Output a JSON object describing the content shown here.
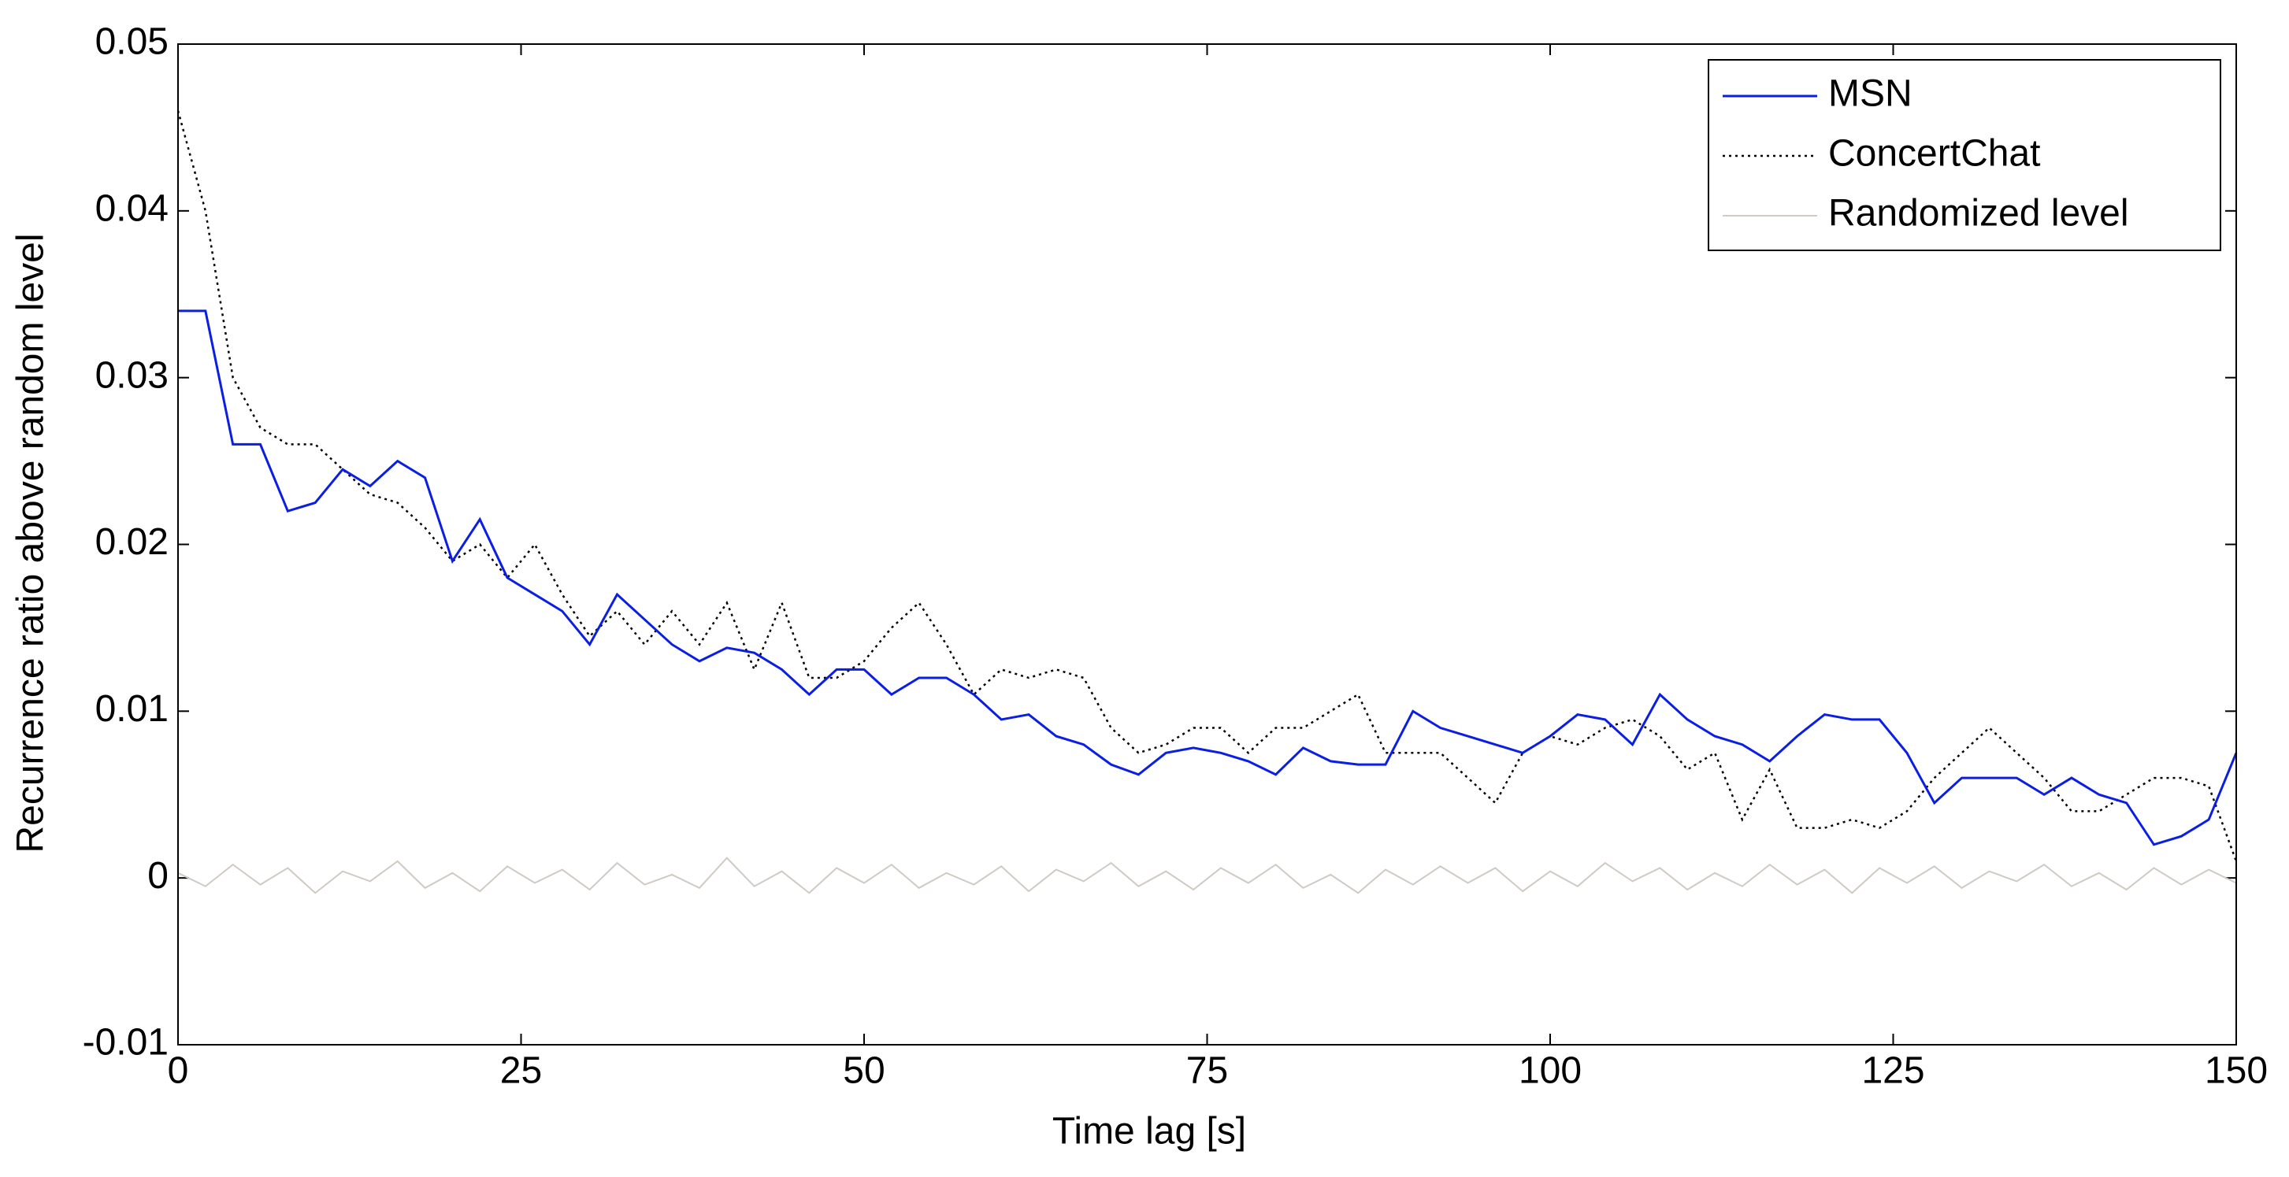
{
  "chart_data": {
    "type": "line",
    "xlabel": "Time lag [s]",
    "ylabel": "Recurrence ratio above random level",
    "x": [
      0,
      2,
      4,
      6,
      8,
      10,
      12,
      14,
      16,
      18,
      20,
      22,
      24,
      26,
      28,
      30,
      32,
      34,
      36,
      38,
      40,
      42,
      44,
      46,
      48,
      50,
      52,
      54,
      56,
      58,
      60,
      62,
      64,
      66,
      68,
      70,
      72,
      74,
      76,
      78,
      80,
      82,
      84,
      86,
      88,
      90,
      92,
      94,
      96,
      98,
      100,
      102,
      104,
      106,
      108,
      110,
      112,
      114,
      116,
      118,
      120,
      122,
      124,
      126,
      128,
      130,
      132,
      134,
      136,
      138,
      140,
      142,
      144,
      146,
      148,
      150
    ],
    "series": [
      {
        "name": "MSN",
        "color": "#0a1ee6",
        "style": "solid",
        "width": 3,
        "values": [
          0.034,
          0.034,
          0.026,
          0.026,
          0.022,
          0.0225,
          0.0245,
          0.0235,
          0.025,
          0.024,
          0.019,
          0.0215,
          0.018,
          0.017,
          0.016,
          0.014,
          0.017,
          0.0155,
          0.014,
          0.013,
          0.0138,
          0.0135,
          0.0125,
          0.011,
          0.0125,
          0.0125,
          0.011,
          0.012,
          0.012,
          0.011,
          0.0095,
          0.0098,
          0.0085,
          0.008,
          0.0068,
          0.0062,
          0.0075,
          0.0078,
          0.0075,
          0.007,
          0.0062,
          0.0078,
          0.007,
          0.0068,
          0.0068,
          0.01,
          0.009,
          0.0085,
          0.008,
          0.0075,
          0.0085,
          0.0098,
          0.0095,
          0.008,
          0.011,
          0.0095,
          0.0085,
          0.008,
          0.007,
          0.0085,
          0.0098,
          0.0095,
          0.0095,
          0.0075,
          0.0045,
          0.006,
          0.006,
          0.006,
          0.005,
          0.006,
          0.005,
          0.0045,
          0.002,
          0.0025,
          0.0035,
          0.0075
        ]
      },
      {
        "name": "ConcertChat",
        "color": "#000000",
        "style": "dotted",
        "width": 2.5,
        "values": [
          0.046,
          0.04,
          0.03,
          0.027,
          0.026,
          0.026,
          0.0245,
          0.023,
          0.0225,
          0.021,
          0.019,
          0.02,
          0.018,
          0.02,
          0.017,
          0.0145,
          0.016,
          0.014,
          0.016,
          0.014,
          0.0165,
          0.0125,
          0.0165,
          0.012,
          0.012,
          0.013,
          0.015,
          0.0165,
          0.014,
          0.011,
          0.0125,
          0.012,
          0.0125,
          0.012,
          0.009,
          0.0075,
          0.008,
          0.009,
          0.009,
          0.0075,
          0.009,
          0.009,
          0.01,
          0.011,
          0.0075,
          0.0075,
          0.0075,
          0.006,
          0.0045,
          0.0075,
          0.0085,
          0.008,
          0.009,
          0.0095,
          0.0085,
          0.0065,
          0.0075,
          0.0035,
          0.0065,
          0.003,
          0.003,
          0.0035,
          0.003,
          0.004,
          0.006,
          0.0075,
          0.009,
          0.0075,
          0.006,
          0.004,
          0.004,
          0.005,
          0.006,
          0.006,
          0.0055,
          0.001
        ]
      },
      {
        "name": "Randomized level",
        "color": "#cfcac4",
        "style": "solid",
        "width": 2,
        "values": [
          0.0003,
          -0.0005,
          0.0008,
          -0.0004,
          0.0006,
          -0.0009,
          0.0004,
          -0.0002,
          0.001,
          -0.0006,
          0.0003,
          -0.0008,
          0.0007,
          -0.0003,
          0.0005,
          -0.0007,
          0.0009,
          -0.0004,
          0.0002,
          -0.0006,
          0.0012,
          -0.0005,
          0.0004,
          -0.0009,
          0.0006,
          -0.0003,
          0.0008,
          -0.0006,
          0.0003,
          -0.0004,
          0.0007,
          -0.0008,
          0.0005,
          -0.0002,
          0.0009,
          -0.0005,
          0.0004,
          -0.0007,
          0.0006,
          -0.0003,
          0.0008,
          -0.0006,
          0.0002,
          -0.0009,
          0.0005,
          -0.0004,
          0.0007,
          -0.0003,
          0.0006,
          -0.0008,
          0.0004,
          -0.0005,
          0.0009,
          -0.0002,
          0.0006,
          -0.0007,
          0.0003,
          -0.0005,
          0.0008,
          -0.0004,
          0.0005,
          -0.0009,
          0.0006,
          -0.0003,
          0.0007,
          -0.0006,
          0.0004,
          -0.0002,
          0.0008,
          -0.0005,
          0.0003,
          -0.0007,
          0.0006,
          -0.0004,
          0.0005,
          -0.0003
        ]
      }
    ],
    "xlim": [
      0,
      150
    ],
    "xticks": [
      0,
      25,
      50,
      75,
      100,
      125,
      150
    ],
    "ylim": [
      -0.01,
      0.05
    ],
    "yticks": [
      -0.01,
      0,
      0.01,
      0.02,
      0.03,
      0.04,
      0.05
    ],
    "legend": "upper right",
    "grid": false
  }
}
